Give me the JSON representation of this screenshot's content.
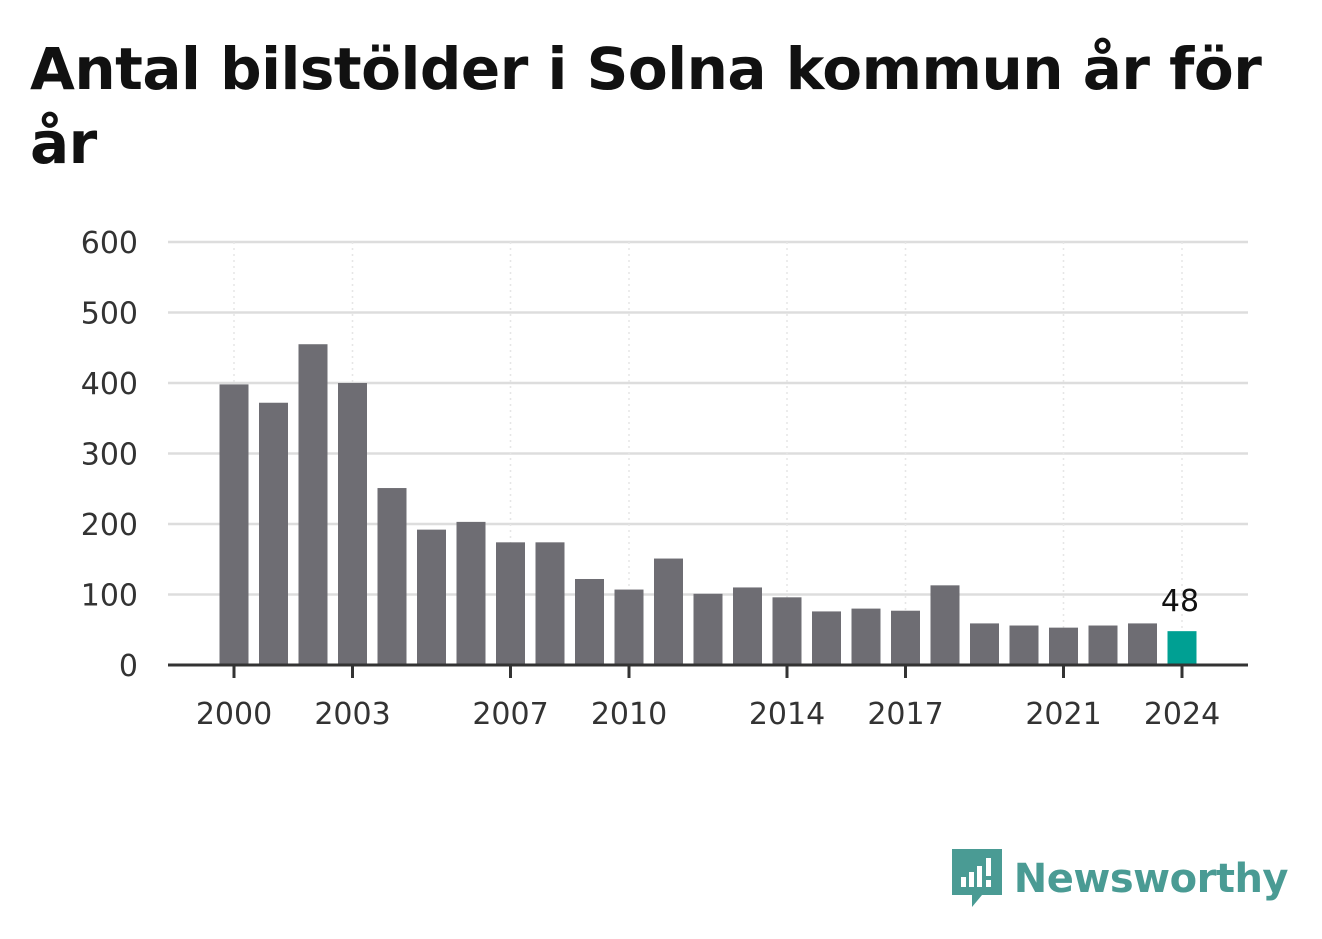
{
  "chart_data": {
    "type": "bar",
    "title": "Antal bilstölder i Solna kommun år för år",
    "xlabel": "",
    "ylabel": "",
    "ylim": [
      0,
      600
    ],
    "y_ticks": [
      0,
      100,
      200,
      300,
      400,
      500,
      600
    ],
    "x_tick_labels": [
      "2000",
      "2003",
      "2007",
      "2010",
      "2014",
      "2017",
      "2021",
      "2024"
    ],
    "categories": [
      "2000",
      "2001",
      "2002",
      "2003",
      "2004",
      "2005",
      "2006",
      "2007",
      "2008",
      "2009",
      "2010",
      "2011",
      "2012",
      "2013",
      "2014",
      "2015",
      "2016",
      "2017",
      "2018",
      "2019",
      "2020",
      "2021",
      "2022",
      "2023",
      "2024"
    ],
    "values": [
      398,
      372,
      455,
      400,
      251,
      192,
      203,
      174,
      174,
      122,
      107,
      151,
      101,
      110,
      96,
      76,
      80,
      77,
      113,
      59,
      56,
      53,
      56,
      59,
      48
    ],
    "highlight": {
      "category": "2024",
      "label": "48"
    },
    "grid": true,
    "legend": "none",
    "colors": {
      "bar": "#6e6d73",
      "highlight": "#00a093",
      "grid": "#dddddd",
      "axis": "#333333"
    }
  },
  "brand": {
    "name": "Newsworthy",
    "icon": "newsworthy-logo-icon",
    "color": "#4a9b94"
  }
}
